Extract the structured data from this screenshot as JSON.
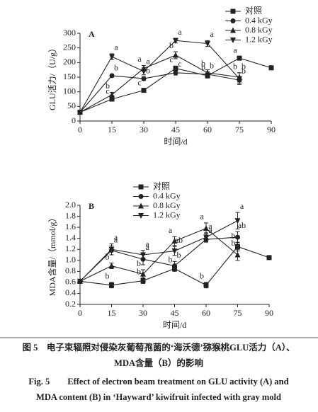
{
  "chart_data": [
    {
      "type": "line",
      "panel": "A",
      "xlabel": "时间/d",
      "ylabel": "GLU活力/（U/g）",
      "x": [
        0,
        15,
        30,
        45,
        60,
        75,
        90
      ],
      "xlim": [
        0,
        90
      ],
      "xticks": [
        0,
        15,
        30,
        45,
        60,
        75,
        90
      ],
      "ylim": [
        0,
        300
      ],
      "yticks": [
        0,
        50,
        100,
        150,
        200,
        250,
        300
      ],
      "series": [
        {
          "name": "对照",
          "color": "#222222",
          "marker": "square",
          "values": [
            30,
            75,
            105,
            180,
            155,
            215,
            182
          ],
          "errors": [
            null,
            6,
            5,
            8,
            8,
            6,
            null
          ],
          "letters": [
            null,
            "c",
            "c",
            "c",
            "b",
            "a",
            null
          ]
        },
        {
          "name": "0.4 kGy",
          "color": "#222222",
          "marker": "circle",
          "values": [
            30,
            155,
            145,
            165,
            160,
            140,
            null
          ],
          "errors": [
            null,
            5,
            6,
            8,
            8,
            10,
            null
          ],
          "letters": [
            null,
            "b",
            "b",
            "c",
            "b",
            "b",
            null
          ]
        },
        {
          "name": "0.8 kGy",
          "color": "#222222",
          "marker": "triangle-up",
          "values": [
            30,
            90,
            180,
            225,
            165,
            150,
            null
          ],
          "errors": [
            null,
            8,
            10,
            12,
            10,
            15,
            null
          ],
          "letters": [
            null,
            "b",
            "a",
            "b",
            "b",
            "b",
            null
          ]
        },
        {
          "name": "1.2 kGy",
          "color": "#222222",
          "marker": "triangle-down",
          "values": [
            30,
            220,
            170,
            275,
            265,
            145,
            null
          ],
          "errors": [
            null,
            10,
            12,
            8,
            10,
            20,
            null
          ],
          "letters": [
            null,
            "a",
            "a",
            "a",
            "a",
            "b",
            null
          ]
        }
      ]
    },
    {
      "type": "line",
      "panel": "B",
      "xlabel": "时间/d",
      "ylabel": "MDA含量/（mmol/g）",
      "x": [
        0,
        15,
        30,
        45,
        60,
        75,
        90
      ],
      "xlim": [
        0,
        90
      ],
      "xticks": [
        0,
        15,
        30,
        45,
        60,
        75,
        90
      ],
      "ylim": [
        0.2,
        2.0
      ],
      "yticks": [
        0.2,
        0.4,
        0.6,
        0.8,
        {
          "value": 1.0,
          "label": "1.0"
        },
        1.2,
        1.4,
        1.6,
        1.8,
        {
          "value": 2.0,
          "label": "2.0"
        }
      ],
      "series": [
        {
          "name": "对照",
          "color": "#222222",
          "marker": "square",
          "values": [
            0.62,
            0.55,
            0.63,
            0.85,
            0.55,
            1.25,
            1.05
          ],
          "errors": [
            null,
            0.05,
            0.05,
            0.05,
            0.05,
            0.08,
            null
          ],
          "letters": [
            null,
            "b",
            "b",
            "b",
            "b",
            "b",
            null
          ]
        },
        {
          "name": "0.4 kGy",
          "color": "#222222",
          "marker": "circle",
          "values": [
            0.62,
            1.18,
            1.02,
            0.9,
            1.38,
            1.42,
            null
          ],
          "errors": [
            null,
            0.08,
            0.1,
            0.08,
            0.05,
            0.1,
            null
          ],
          "letters": [
            null,
            "a",
            "a",
            "b",
            "a",
            "ab",
            null
          ]
        },
        {
          "name": "0.8 kGy",
          "color": "#222222",
          "marker": "triangle-up",
          "values": [
            0.62,
            0.9,
            0.75,
            1.35,
            1.58,
            1.1,
            null
          ],
          "errors": [
            null,
            0.05,
            0.08,
            0.08,
            0.1,
            0.1,
            null
          ],
          "letters": [
            null,
            "b",
            "b",
            "a",
            "a",
            "b",
            null
          ]
        },
        {
          "name": "1.2 kGy",
          "color": "#222222",
          "marker": "triangle-down",
          "values": [
            0.62,
            1.2,
            1.1,
            1.17,
            1.42,
            1.72,
            null
          ],
          "errors": [
            null,
            0.1,
            0.08,
            0.08,
            0.08,
            0.15,
            null
          ],
          "letters": [
            null,
            "a",
            "a",
            "ab",
            "a",
            "a",
            null
          ]
        }
      ]
    }
  ],
  "caption": {
    "zh": [
      "图 5　电子束辐照对侵染灰葡萄孢菌的‘海沃德’猕猴桃GLU活力（A）、",
      "MDA含量（B）的影响"
    ],
    "en": [
      "Fig. 5　　Effect of electron beam treatment on GLU activity (A) and",
      "MDA content (B) in ‘Hayward’ kiwifruit infected with gray mold"
    ]
  }
}
